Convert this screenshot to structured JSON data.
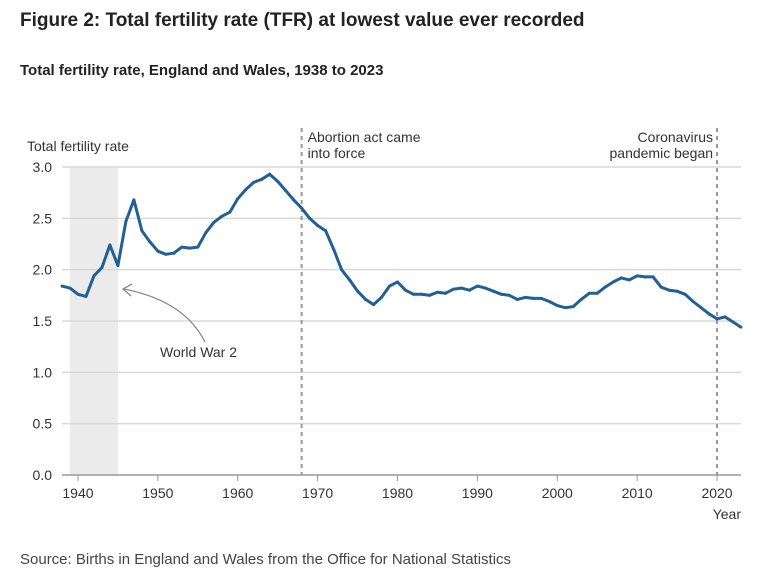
{
  "title": "Figure 2: Total fertility rate (TFR) at lowest value ever recorded",
  "subtitle": "Total fertility rate, England and Wales, 1938 to 2023",
  "source": "Source: Births in England and Wales from the Office for National Statistics",
  "colors": {
    "line": "#206095",
    "shade": "#ebebeb",
    "grid": "#d9d9d9"
  },
  "chart_data": {
    "type": "line",
    "ylabel": "Total fertility rate",
    "xlabel": "Year",
    "xlim": [
      1938,
      2023
    ],
    "ylim": [
      0,
      3.0
    ],
    "y_ticks": [
      "0.0",
      "0.5",
      "1.0",
      "1.5",
      "2.0",
      "2.5",
      "3.0"
    ],
    "x_ticks": [
      "1940",
      "1950",
      "1960",
      "1970",
      "1980",
      "1990",
      "2000",
      "2010",
      "2020"
    ],
    "grid": true,
    "x": [
      1938,
      1939,
      1940,
      1941,
      1942,
      1943,
      1944,
      1945,
      1946,
      1947,
      1948,
      1949,
      1950,
      1951,
      1952,
      1953,
      1954,
      1955,
      1956,
      1957,
      1958,
      1959,
      1960,
      1961,
      1962,
      1963,
      1964,
      1965,
      1966,
      1967,
      1968,
      1969,
      1970,
      1971,
      1972,
      1973,
      1974,
      1975,
      1976,
      1977,
      1978,
      1979,
      1980,
      1981,
      1982,
      1983,
      1984,
      1985,
      1986,
      1987,
      1988,
      1989,
      1990,
      1991,
      1992,
      1993,
      1994,
      1995,
      1996,
      1997,
      1998,
      1999,
      2000,
      2001,
      2002,
      2003,
      2004,
      2005,
      2006,
      2007,
      2008,
      2009,
      2010,
      2011,
      2012,
      2013,
      2014,
      2015,
      2016,
      2017,
      2018,
      2019,
      2020,
      2021,
      2022,
      2023
    ],
    "series": [
      {
        "name": "Total fertility rate",
        "values": [
          1.84,
          1.82,
          1.76,
          1.74,
          1.94,
          2.02,
          2.24,
          2.04,
          2.47,
          2.68,
          2.38,
          2.27,
          2.18,
          2.15,
          2.16,
          2.22,
          2.21,
          2.22,
          2.36,
          2.46,
          2.52,
          2.56,
          2.69,
          2.78,
          2.85,
          2.88,
          2.93,
          2.86,
          2.77,
          2.68,
          2.6,
          2.5,
          2.43,
          2.38,
          2.2,
          2.0,
          1.9,
          1.79,
          1.71,
          1.66,
          1.73,
          1.84,
          1.88,
          1.8,
          1.76,
          1.76,
          1.75,
          1.78,
          1.77,
          1.81,
          1.82,
          1.8,
          1.84,
          1.82,
          1.79,
          1.76,
          1.75,
          1.71,
          1.73,
          1.72,
          1.72,
          1.69,
          1.65,
          1.63,
          1.64,
          1.71,
          1.77,
          1.77,
          1.83,
          1.88,
          1.92,
          1.9,
          1.94,
          1.93,
          1.93,
          1.83,
          1.8,
          1.79,
          1.76,
          1.69,
          1.63,
          1.57,
          1.52,
          1.54,
          1.49,
          1.44
        ]
      }
    ],
    "shaded_range": {
      "from": 1939,
      "to": 1945,
      "label": "World War 2"
    },
    "annotations": [
      {
        "x": 1968,
        "lines": [
          "Abortion act came",
          "into force"
        ]
      },
      {
        "x": 2020,
        "lines": [
          "Coronavirus",
          "pandemic began"
        ]
      }
    ]
  }
}
